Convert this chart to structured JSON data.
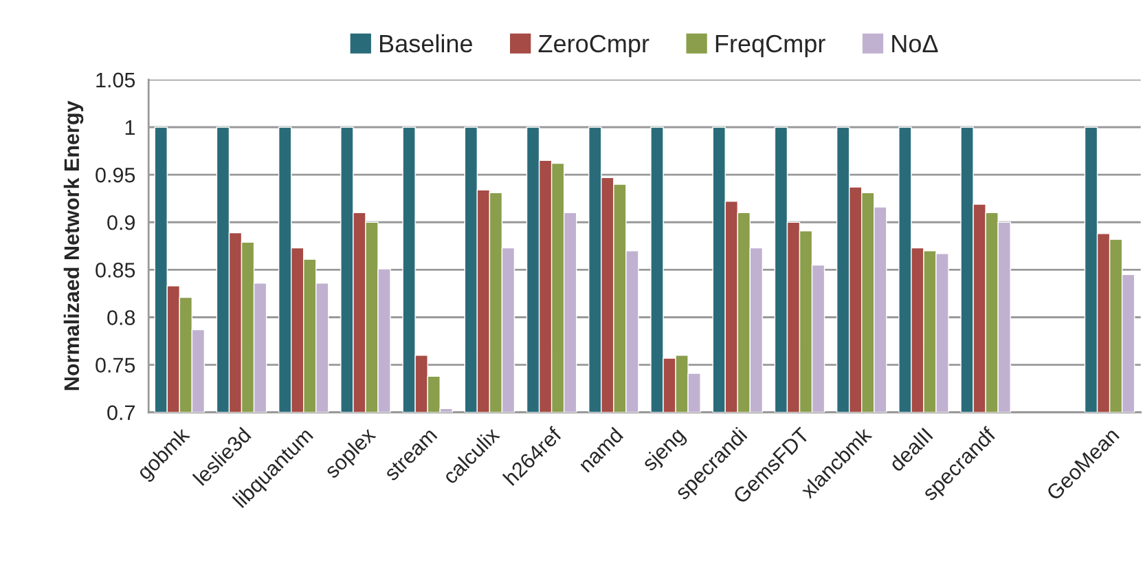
{
  "chart_data": {
    "type": "bar",
    "ylabel": "Normalizaed Network Energy",
    "categories": [
      "gobmk",
      "leslie3d",
      "libquantum",
      "soplex",
      "stream",
      "calculix",
      "h264ref",
      "namd",
      "sjeng",
      "specrandi",
      "GemsFDT",
      "xlancbmk",
      "dealII",
      "specrandf",
      null,
      "GeoMean"
    ],
    "series": [
      {
        "name": "Baseline",
        "color": "#2a6b7a",
        "values": [
          1,
          1,
          1,
          1,
          1,
          1,
          1,
          1,
          1,
          1,
          1,
          1,
          1,
          1,
          null,
          1
        ]
      },
      {
        "name": "ZeroCmpr",
        "color": "#a64b45",
        "values": [
          0.833,
          0.889,
          0.873,
          0.91,
          0.76,
          0.934,
          0.965,
          0.947,
          0.757,
          0.922,
          0.9,
          0.937,
          0.873,
          0.919,
          null,
          0.888
        ]
      },
      {
        "name": "FreqCmpr",
        "color": "#8a9e4b",
        "values": [
          0.821,
          0.879,
          0.861,
          0.9,
          0.738,
          0.931,
          0.962,
          0.94,
          0.76,
          0.91,
          0.891,
          0.931,
          0.87,
          0.91,
          null,
          0.882
        ]
      },
      {
        "name": "NoΔ",
        "color": "#c1b1d1",
        "values": [
          0.787,
          0.836,
          0.836,
          0.851,
          0.704,
          0.873,
          0.91,
          0.87,
          0.741,
          0.873,
          0.855,
          0.916,
          0.867,
          0.9,
          null,
          0.845
        ]
      }
    ],
    "ylim": [
      0.7,
      1.05
    ],
    "yticks": [
      {
        "value": 0.7,
        "label": "0.7"
      },
      {
        "value": 0.75,
        "label": "0.75"
      },
      {
        "value": 0.8,
        "label": "0.8"
      },
      {
        "value": 0.85,
        "label": "0.85"
      },
      {
        "value": 0.9,
        "label": "0.9"
      },
      {
        "value": 0.95,
        "label": "0.95"
      },
      1,
      {
        "value": 1.05,
        "label": "1.05"
      }
    ],
    "grid": "y",
    "legend": "top"
  }
}
